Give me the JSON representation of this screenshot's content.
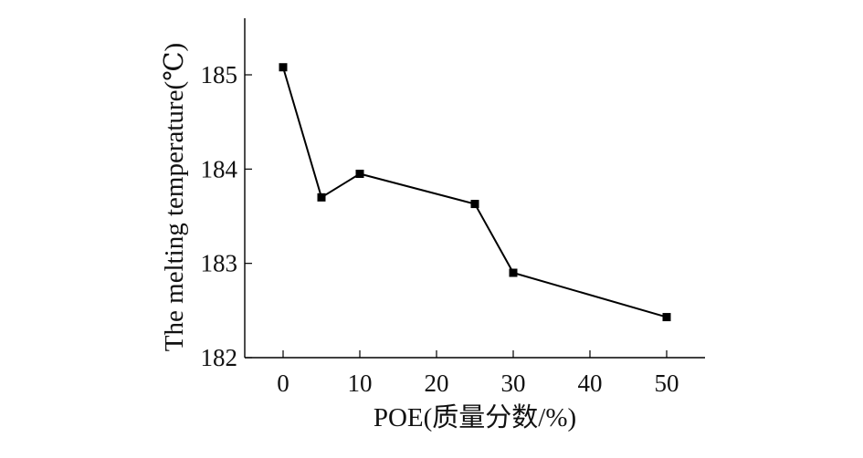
{
  "chart_data": {
    "type": "line",
    "x": [
      0,
      5,
      10,
      25,
      30,
      50
    ],
    "series": [
      {
        "values": [
          185.08,
          183.7,
          183.95,
          183.63,
          182.9,
          182.43
        ]
      }
    ],
    "xlabel": "POE(质量分数/%)",
    "ylabel": "The melting temperature(℃)",
    "xlim": [
      -5,
      55
    ],
    "ylim": [
      182,
      185.6
    ],
    "xticks": [
      0,
      10,
      20,
      30,
      40,
      50
    ],
    "yticks": [
      182,
      183,
      184,
      185
    ],
    "xtick_labels": [
      "0",
      "10",
      "20",
      "30",
      "40",
      "50"
    ],
    "ytick_labels": [
      "182",
      "183",
      "184",
      "185"
    ],
    "grid": false,
    "legend": "none",
    "marker": "square",
    "colors": {
      "line": "#000000",
      "axes": "#000000"
    }
  }
}
